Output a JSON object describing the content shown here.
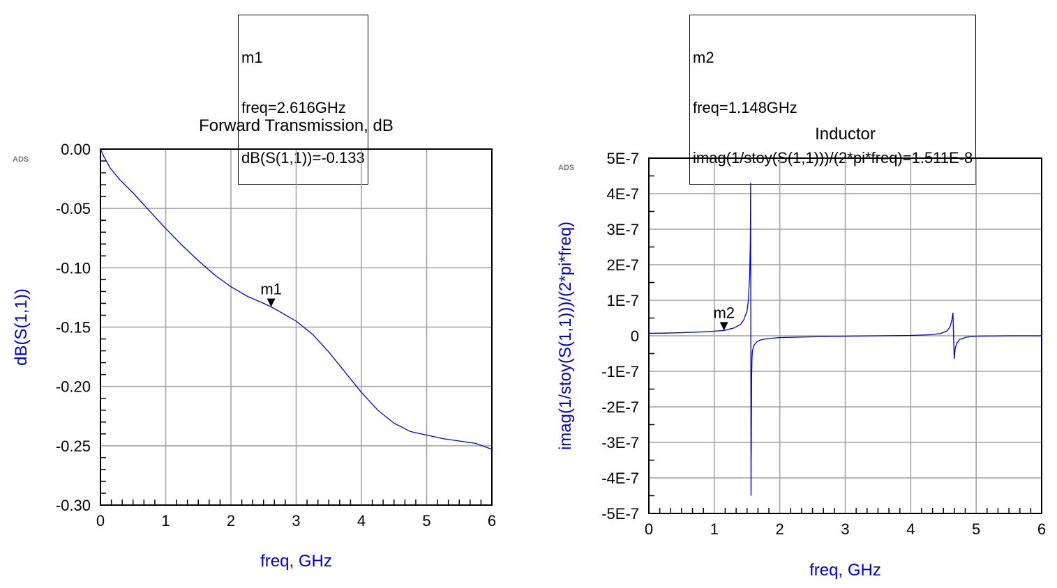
{
  "markers": [
    {
      "name": "m1",
      "lines": [
        "m1",
        "freq=2.616GHz",
        "dB(S(1,1))=-0.133"
      ]
    },
    {
      "name": "m2",
      "lines": [
        "m2",
        "freq=1.148GHz",
        "imag(1/stoy(S(1,1)))/(2*pi*freq)=1.511E-8"
      ]
    }
  ],
  "ads_badge": "ADS",
  "chart_data": [
    {
      "type": "line",
      "title": "Forward Transmission, dB",
      "xlabel": "freq, GHz",
      "ylabel": "dB(S(1,1))",
      "xlim": [
        0,
        6
      ],
      "ylim": [
        -0.3,
        0.0
      ],
      "x_ticks": [
        "0",
        "1",
        "2",
        "3",
        "4",
        "5",
        "6"
      ],
      "y_ticks": [
        "0.00",
        "-0.05",
        "-0.10",
        "-0.15",
        "-0.20",
        "-0.25",
        "-0.30"
      ],
      "grid": true,
      "series_color": "#0000cc",
      "series": [
        {
          "x": [
            0,
            0.05,
            0.15,
            0.3,
            0.5,
            0.75,
            1.0,
            1.25,
            1.5,
            1.75,
            2.0,
            2.25,
            2.5,
            2.616,
            2.75,
            3.0,
            3.25,
            3.5,
            3.75,
            4.0,
            4.25,
            4.5,
            4.75,
            5.0,
            5.25,
            5.5,
            5.75,
            6.0
          ],
          "y": [
            0.0,
            -0.006,
            -0.016,
            -0.026,
            -0.037,
            -0.052,
            -0.067,
            -0.081,
            -0.094,
            -0.106,
            -0.116,
            -0.124,
            -0.13,
            -0.133,
            -0.137,
            -0.145,
            -0.156,
            -0.171,
            -0.188,
            -0.205,
            -0.22,
            -0.231,
            -0.238,
            -0.241,
            -0.244,
            -0.246,
            -0.248,
            -0.253
          ]
        }
      ],
      "marker": {
        "label": "m1",
        "x": 2.616,
        "y": -0.133
      }
    },
    {
      "type": "line",
      "title": "Inductor",
      "xlabel": "freq, GHz",
      "ylabel": "imag(1/stoy(S(1,1)))/(2*pi*freq)",
      "xlim": [
        0,
        6
      ],
      "ylim": [
        -5e-07,
        5e-07
      ],
      "x_ticks": [
        "0",
        "1",
        "2",
        "3",
        "4",
        "5",
        "6"
      ],
      "y_ticks": [
        "5E-7",
        "4E-7",
        "3E-7",
        "2E-7",
        "1E-7",
        "0",
        "-1E-7",
        "-2E-7",
        "-3E-7",
        "-4E-7",
        "-5E-7"
      ],
      "grid": true,
      "series_color": "#0000cc",
      "series": [
        {
          "x": [
            0,
            0.2,
            0.4,
            0.6,
            0.8,
            1.0,
            1.148,
            1.3,
            1.4,
            1.45,
            1.5,
            1.52,
            1.54,
            1.55,
            1.555,
            1.56,
            1.562,
            1.565,
            1.57,
            1.575,
            1.58,
            1.6,
            1.65,
            1.7,
            1.8,
            2.0,
            2.5,
            3.0,
            3.5,
            4.0,
            4.3,
            4.45,
            4.55,
            4.6,
            4.63,
            4.645,
            4.655,
            4.665,
            4.67,
            4.68,
            4.7,
            4.75,
            4.85,
            5.0,
            5.5,
            6.0
          ],
          "y": [
            7e-09,
            7.5e-09,
            8.2e-09,
            9.5e-09,
            1.1e-08,
            1.3e-08,
            1.511e-08,
            2.2e-08,
            3.2e-08,
            4.5e-08,
            7e-08,
            1e-07,
            1.7e-07,
            2.6e-07,
            4.3e-07,
            -4.5e-07,
            -3.5e-07,
            -3.2e-07,
            -1.2e-07,
            -6.5e-08,
            -4.5e-08,
            -2.8e-08,
            -1.7e-08,
            -1.2e-08,
            -8e-09,
            -5e-09,
            -3e-09,
            -1e-09,
            0.0,
            1e-09,
            3e-09,
            6e-09,
            1.3e-08,
            2.5e-08,
            4.5e-08,
            6.5e-08,
            -1e-08,
            -6.5e-08,
            -5.5e-08,
            -3.5e-08,
            -2.2e-08,
            -1e-08,
            -4e-09,
            -1e-09,
            0.0,
            0.0
          ]
        }
      ],
      "marker": {
        "label": "m2",
        "x": 1.148,
        "y": 1.511e-08
      }
    }
  ]
}
